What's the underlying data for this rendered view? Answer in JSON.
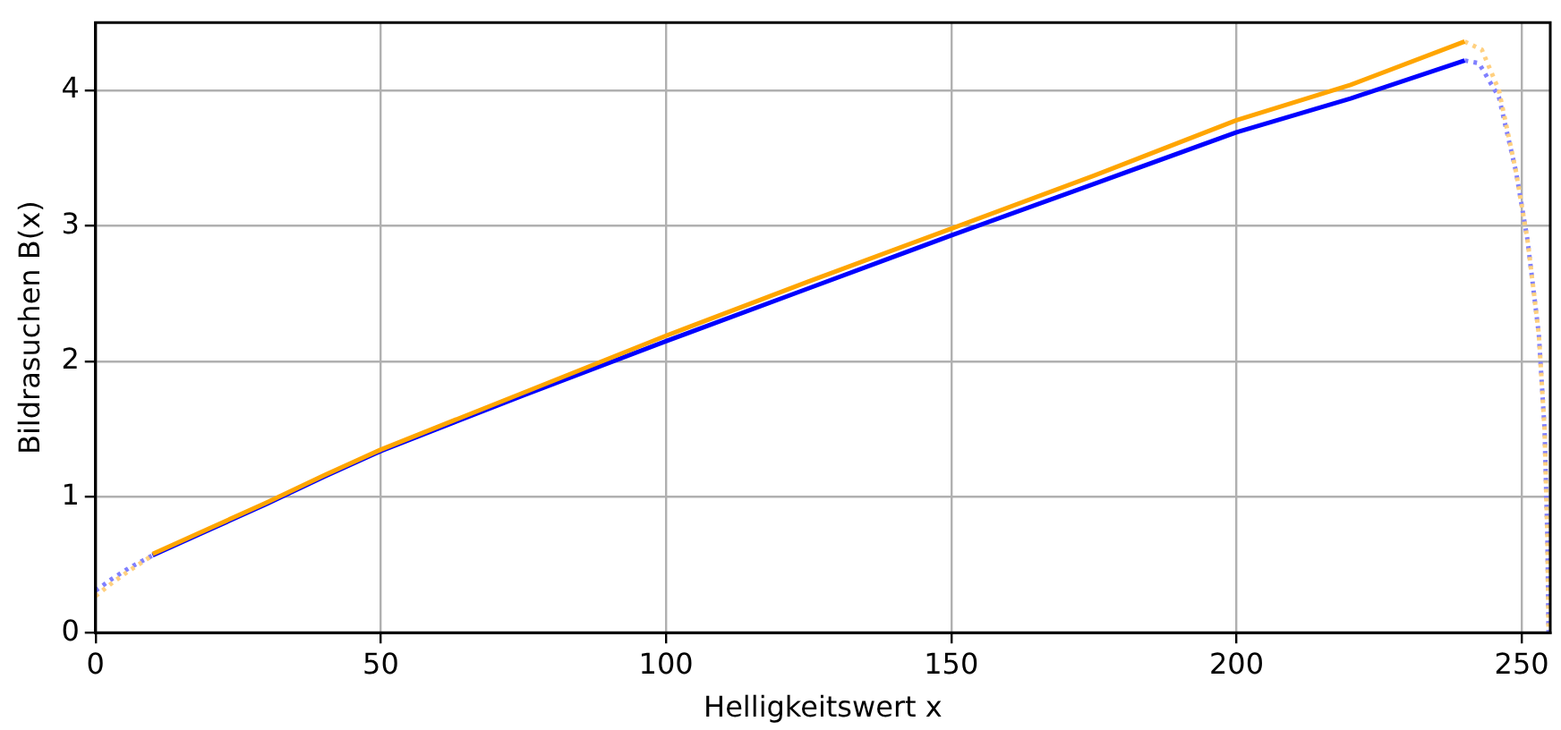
{
  "chart_data": {
    "type": "line",
    "xlabel": "Helligkeitswert x",
    "ylabel": "Bildrasuchen B(x)",
    "xlim": [
      0,
      255
    ],
    "ylim": [
      0,
      4.5
    ],
    "xticks": [
      0,
      50,
      100,
      150,
      200,
      250
    ],
    "yticks": [
      0,
      1,
      2,
      3,
      4
    ],
    "grid": true,
    "legend": false,
    "marker": "none",
    "series": [
      {
        "color": "#8080ff",
        "line_style": "dotted",
        "x": [
          0,
          3,
          6,
          10
        ],
        "values": [
          0.31,
          0.4,
          0.48,
          0.57
        ]
      },
      {
        "color": "#ffd080",
        "line_style": "dotted",
        "x": [
          0,
          3,
          6,
          10
        ],
        "values": [
          0.27,
          0.37,
          0.46,
          0.57
        ]
      },
      {
        "color": "#8080ff",
        "line_style": "dotted",
        "x": [
          240,
          242.5,
          246,
          249,
          251,
          253,
          254,
          254.5,
          254.7
        ],
        "values": [
          4.22,
          4.2,
          3.95,
          3.4,
          2.9,
          2.2,
          1.5,
          0.7,
          0
        ]
      },
      {
        "color": "#ffd080",
        "line_style": "dotted",
        "x": [
          240,
          243,
          246,
          249,
          251,
          253,
          254,
          254.5,
          254.7
        ],
        "values": [
          4.36,
          4.3,
          4.0,
          3.4,
          2.9,
          2.2,
          1.5,
          0.7,
          0
        ]
      },
      {
        "color": "#0000ff",
        "line_style": "solid",
        "x": [
          10,
          20,
          30,
          40,
          50,
          75,
          100,
          125,
          150,
          175,
          200,
          220,
          240
        ],
        "values": [
          0.57,
          0.76,
          0.95,
          1.15,
          1.34,
          1.75,
          2.15,
          2.54,
          2.93,
          3.31,
          3.69,
          3.94,
          4.22
        ]
      },
      {
        "color": "#ffa500",
        "line_style": "solid",
        "x": [
          10,
          20,
          30,
          40,
          50,
          75,
          100,
          125,
          150,
          175,
          200,
          220,
          240
        ],
        "values": [
          0.58,
          0.77,
          0.96,
          1.16,
          1.35,
          1.77,
          2.19,
          2.59,
          2.98,
          3.37,
          3.78,
          4.04,
          4.36
        ]
      }
    ]
  }
}
